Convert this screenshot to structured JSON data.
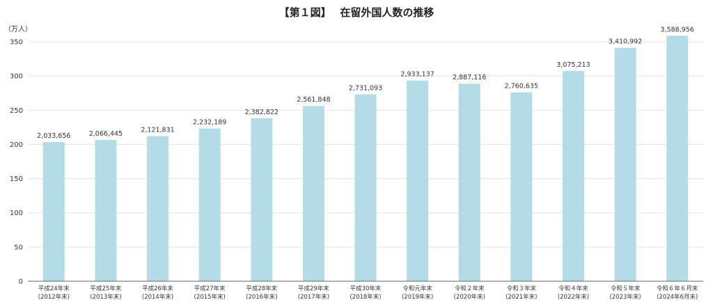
{
  "chart_data": {
    "type": "bar",
    "title": "【第１図】　 在留外国人数の推移",
    "ylabel": "（万人）",
    "xlabel": "",
    "ylim": [
      0,
      350
    ],
    "yticks": [
      0,
      50,
      100,
      150,
      200,
      250,
      300,
      350
    ],
    "grid": true,
    "legend": "none",
    "bar_color": "#b3dce8",
    "categories": [
      [
        "平成24年末",
        "(2012年末)"
      ],
      [
        "平成25年末",
        "(2013年末)"
      ],
      [
        "平成26年末",
        "(2014年末)"
      ],
      [
        "平成27年末",
        "(2015年末)"
      ],
      [
        "平成28年末",
        "(2016年末)"
      ],
      [
        "平成29年末",
        "(2017年末)"
      ],
      [
        "平成30年末",
        "(2018年末)"
      ],
      [
        "令和元年末",
        "(2019年末)"
      ],
      [
        "令和２年末",
        "(2020年末)"
      ],
      [
        "令和３年末",
        "(2021年末)"
      ],
      [
        "令和４年末",
        "(2022年末)"
      ],
      [
        "令和５年末",
        "(2023年末)"
      ],
      [
        "令和６年６月末",
        "(2024年6月末)"
      ]
    ],
    "values": [
      2033656,
      2066445,
      2121831,
      2232189,
      2382822,
      2561848,
      2731093,
      2933137,
      2887116,
      2760635,
      3075213,
      3410992,
      3588956
    ],
    "value_labels": [
      "2,033,656",
      "2,066,445",
      "2,121,831",
      "2,232,189",
      "2,382,822",
      "2,561,848",
      "2,731,093",
      "2,933,137",
      "2,887,116",
      "2,760,635",
      "3,075,213",
      "3,410,992",
      "3,588,956"
    ]
  }
}
